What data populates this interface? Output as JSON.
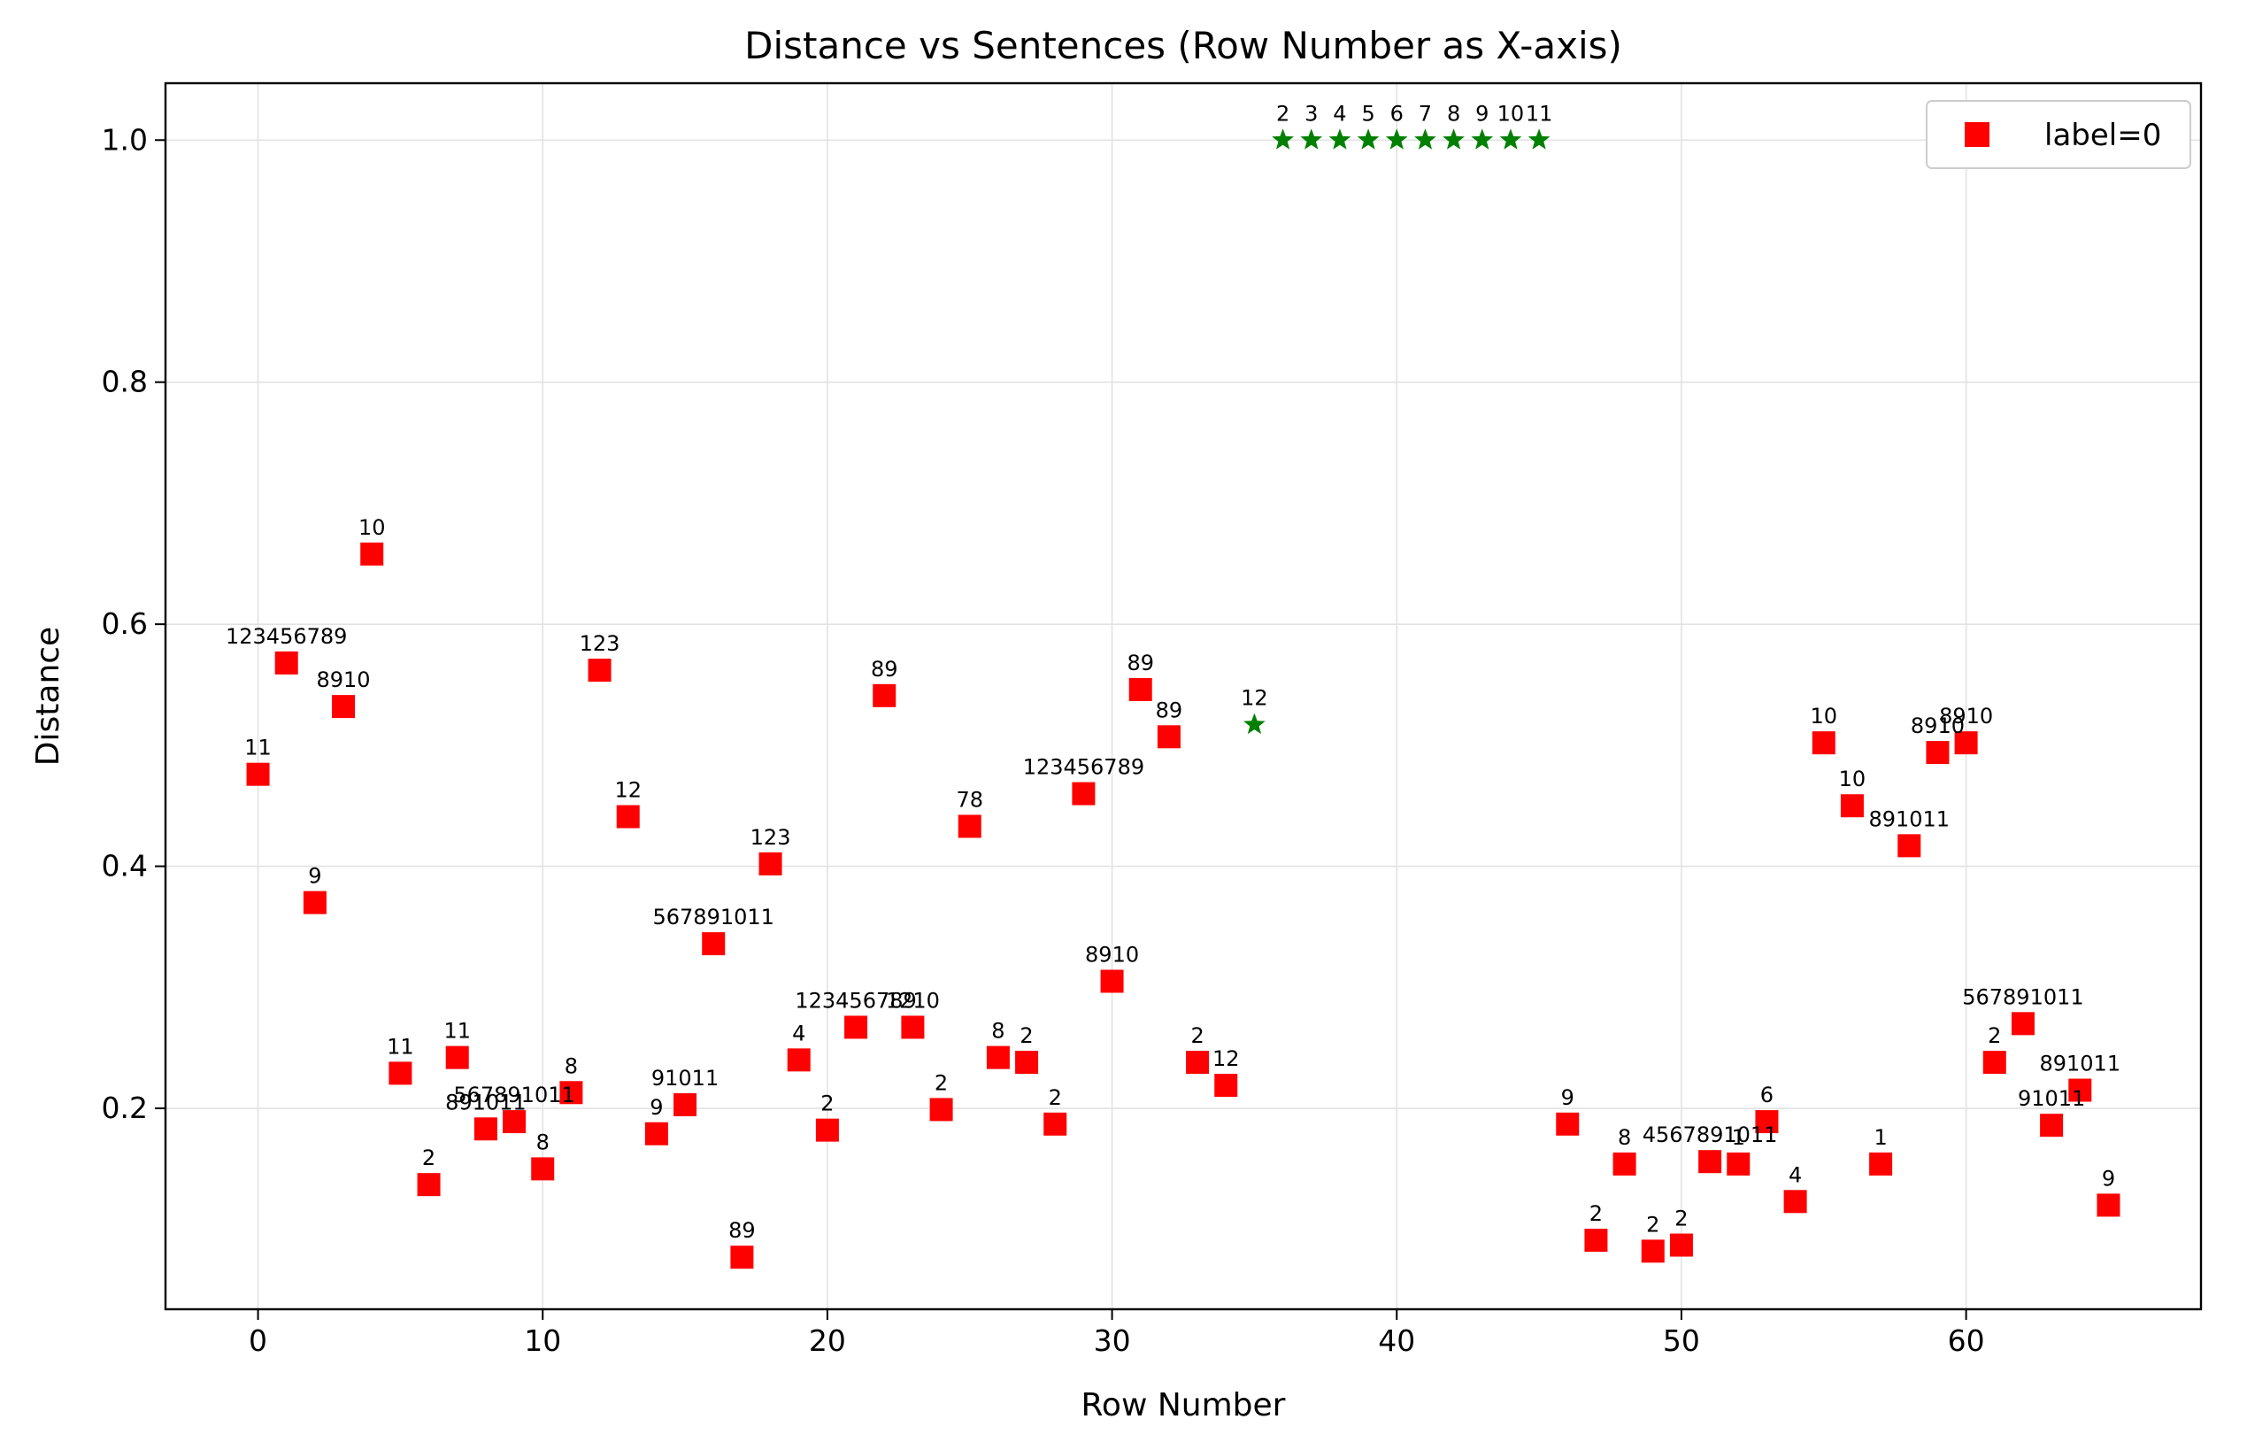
{
  "chart_data": {
    "type": "scatter",
    "title": "Distance vs Sentences (Row Number as X-axis)",
    "xlabel": "Row Number",
    "ylabel": "Distance",
    "xlim": [
      -3.25,
      68.25
    ],
    "ylim": [
      0.034,
      1.047
    ],
    "xticks": [
      0,
      10,
      20,
      30,
      40,
      50,
      60
    ],
    "yticks": [
      0.2,
      0.4,
      0.6,
      0.8,
      1.0
    ],
    "ytick_labels": [
      "0.2",
      "0.4",
      "0.6",
      "0.8",
      "1.0"
    ],
    "grid": true,
    "legend": {
      "position": "top-right",
      "entries": [
        {
          "label": "label=0",
          "color": "#ff0000",
          "marker": "square"
        }
      ]
    },
    "series": [
      {
        "name": "label=0",
        "color": "#ff0000",
        "marker": "square",
        "points": [
          {
            "x": 0,
            "y": 0.476,
            "label": "11"
          },
          {
            "x": 1,
            "y": 0.568,
            "label": "123456789"
          },
          {
            "x": 2,
            "y": 0.37,
            "label": "9"
          },
          {
            "x": 3,
            "y": 0.532,
            "label": "8910"
          },
          {
            "x": 4,
            "y": 0.658,
            "label": "10"
          },
          {
            "x": 5,
            "y": 0.229,
            "label": "11"
          },
          {
            "x": 6,
            "y": 0.137,
            "label": "2"
          },
          {
            "x": 7,
            "y": 0.242,
            "label": "11"
          },
          {
            "x": 8,
            "y": 0.183,
            "label": "891011"
          },
          {
            "x": 9,
            "y": 0.189,
            "label": "567891011"
          },
          {
            "x": 10,
            "y": 0.15,
            "label": "8"
          },
          {
            "x": 11,
            "y": 0.213,
            "label": "8"
          },
          {
            "x": 12,
            "y": 0.562,
            "label": "123"
          },
          {
            "x": 13,
            "y": 0.441,
            "label": "12"
          },
          {
            "x": 14,
            "y": 0.179,
            "label": "9"
          },
          {
            "x": 15,
            "y": 0.203,
            "label": "91011"
          },
          {
            "x": 16,
            "y": 0.336,
            "label": "567891011"
          },
          {
            "x": 17,
            "y": 0.077,
            "label": "89"
          },
          {
            "x": 18,
            "y": 0.402,
            "label": "123"
          },
          {
            "x": 19,
            "y": 0.24,
            "label": "4"
          },
          {
            "x": 20,
            "y": 0.182,
            "label": "2"
          },
          {
            "x": 21,
            "y": 0.267,
            "label": "123456789"
          },
          {
            "x": 22,
            "y": 0.541,
            "label": "89"
          },
          {
            "x": 23,
            "y": 0.267,
            "label": "1210"
          },
          {
            "x": 24,
            "y": 0.199,
            "label": "2"
          },
          {
            "x": 25,
            "y": 0.433,
            "label": "78"
          },
          {
            "x": 26,
            "y": 0.242,
            "label": "8"
          },
          {
            "x": 27,
            "y": 0.238,
            "label": "2"
          },
          {
            "x": 28,
            "y": 0.187,
            "label": "2"
          },
          {
            "x": 29,
            "y": 0.46,
            "label": "123456789"
          },
          {
            "x": 30,
            "y": 0.305,
            "label": "8910"
          },
          {
            "x": 31,
            "y": 0.546,
            "label": "89"
          },
          {
            "x": 32,
            "y": 0.507,
            "label": "89"
          },
          {
            "x": 33,
            "y": 0.238,
            "label": "2"
          },
          {
            "x": 34,
            "y": 0.219,
            "label": "12"
          },
          {
            "x": 46,
            "y": 0.187,
            "label": "9"
          },
          {
            "x": 47,
            "y": 0.091,
            "label": "2"
          },
          {
            "x": 48,
            "y": 0.154,
            "label": "8"
          },
          {
            "x": 49,
            "y": 0.082,
            "label": "2"
          },
          {
            "x": 50,
            "y": 0.087,
            "label": "2"
          },
          {
            "x": 51,
            "y": 0.156,
            "label": "4567891011"
          },
          {
            "x": 52,
            "y": 0.154,
            "label": "1"
          },
          {
            "x": 53,
            "y": 0.189,
            "label": "6"
          },
          {
            "x": 54,
            "y": 0.123,
            "label": "4"
          },
          {
            "x": 55,
            "y": 0.502,
            "label": "10"
          },
          {
            "x": 56,
            "y": 0.45,
            "label": "10"
          },
          {
            "x": 57,
            "y": 0.154,
            "label": "1"
          },
          {
            "x": 58,
            "y": 0.417,
            "label": "891011"
          },
          {
            "x": 59,
            "y": 0.494,
            "label": "8910"
          },
          {
            "x": 60,
            "y": 0.502,
            "label": "8910"
          },
          {
            "x": 61,
            "y": 0.238,
            "label": "2"
          },
          {
            "x": 62,
            "y": 0.27,
            "label": "567891011"
          },
          {
            "x": 63,
            "y": 0.186,
            "label": "91011"
          },
          {
            "x": 64,
            "y": 0.215,
            "label": "891011"
          },
          {
            "x": 65,
            "y": 0.12,
            "label": "9"
          }
        ]
      },
      {
        "color": "#008000",
        "marker": "star",
        "points": [
          {
            "x": 35,
            "y": 0.517,
            "label": "12"
          },
          {
            "x": 36,
            "y": 1.0,
            "label": "2"
          },
          {
            "x": 37,
            "y": 1.0,
            "label": "3"
          },
          {
            "x": 38,
            "y": 1.0,
            "label": "4"
          },
          {
            "x": 39,
            "y": 1.0,
            "label": "5"
          },
          {
            "x": 40,
            "y": 1.0,
            "label": "6"
          },
          {
            "x": 41,
            "y": 1.0,
            "label": "7"
          },
          {
            "x": 42,
            "y": 1.0,
            "label": "8"
          },
          {
            "x": 43,
            "y": 1.0,
            "label": "9"
          },
          {
            "x": 44,
            "y": 1.0,
            "label": "10"
          },
          {
            "x": 45,
            "y": 1.0,
            "label": "11"
          }
        ]
      }
    ]
  }
}
